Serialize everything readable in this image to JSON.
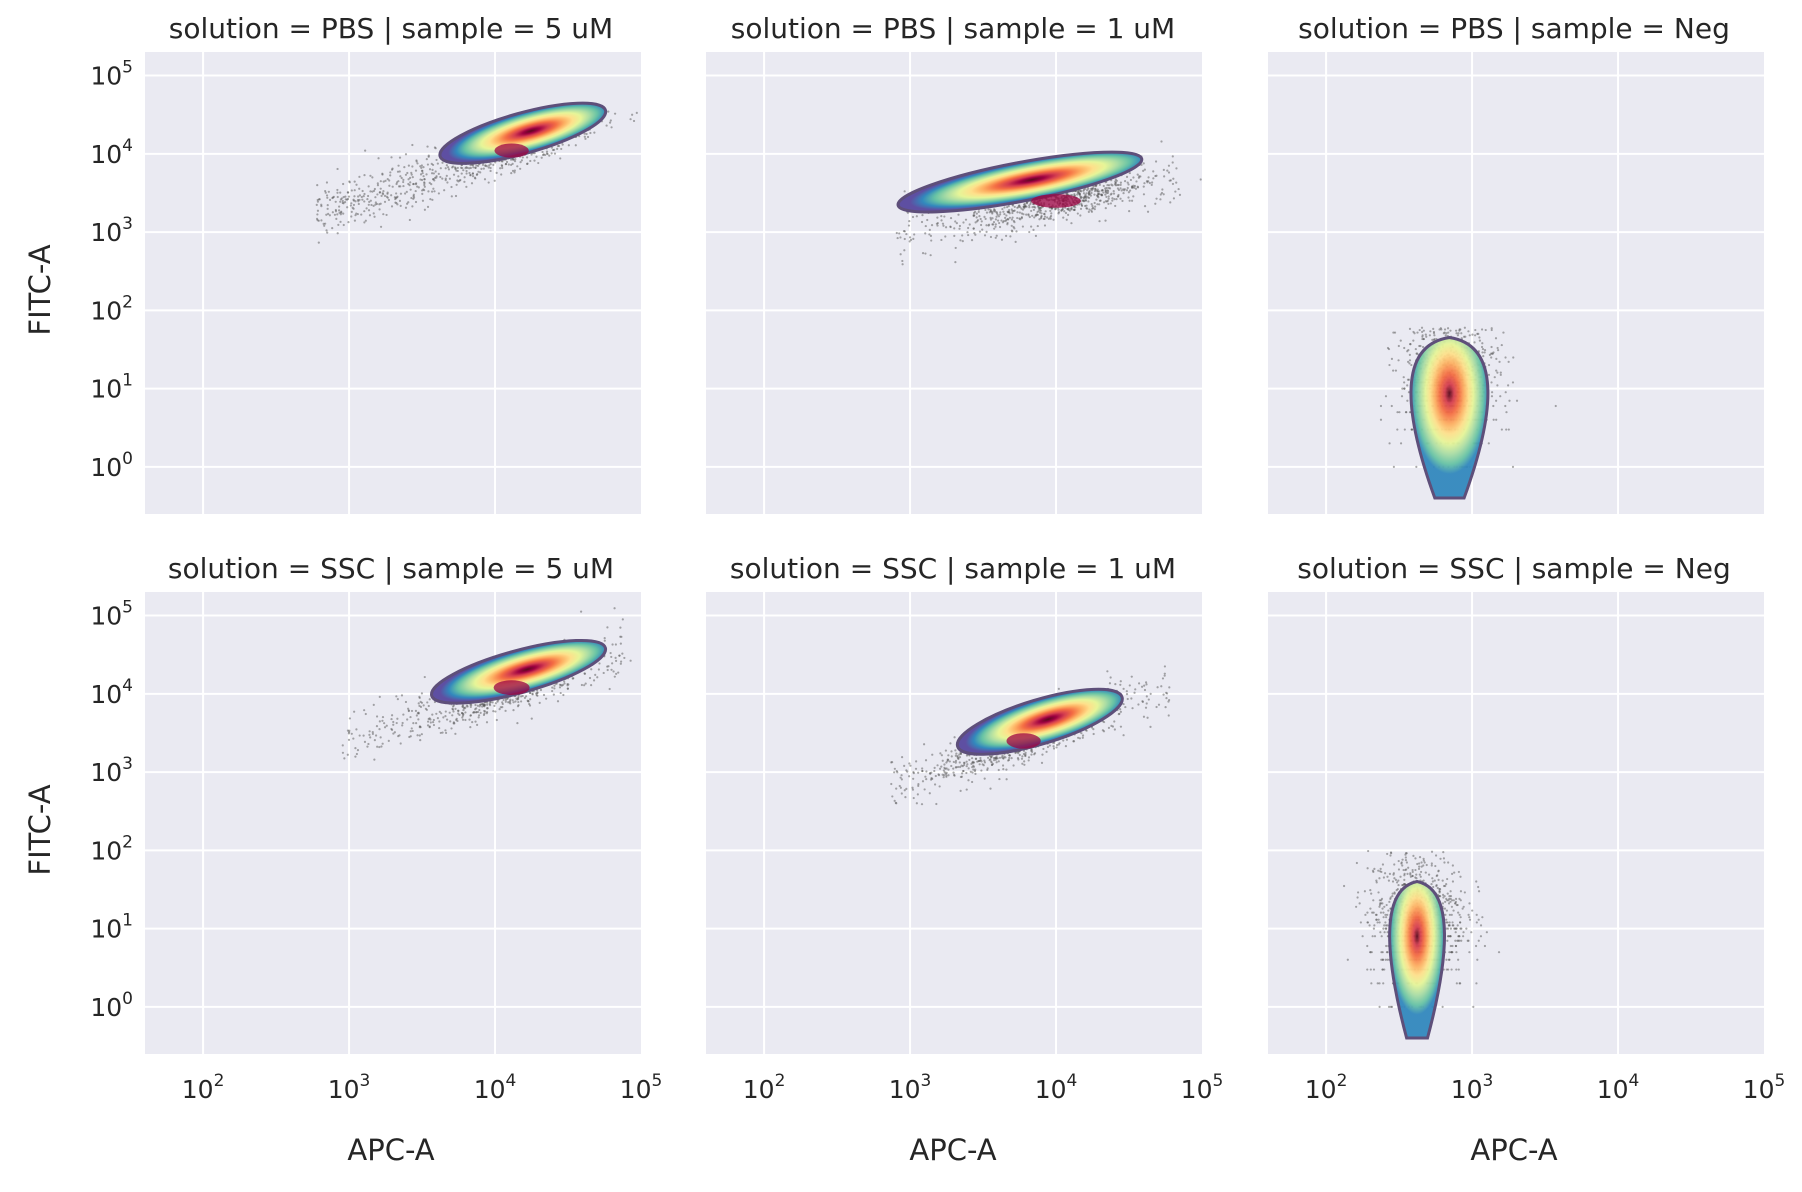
{
  "chart_data": {
    "type": "scatter",
    "layout": "facet-grid",
    "xlabel": "APC-A",
    "ylabel": "FITC-A",
    "xscale": "log",
    "yscale": "log",
    "xlim": [
      40,
      100000
    ],
    "ylim": [
      0.25,
      200000
    ],
    "x_ticks": [
      {
        "base": "10",
        "exp": "2"
      },
      {
        "base": "10",
        "exp": "3"
      },
      {
        "base": "10",
        "exp": "4"
      },
      {
        "base": "10",
        "exp": "5"
      }
    ],
    "y_ticks": [
      {
        "base": "10",
        "exp": "0"
      },
      {
        "base": "10",
        "exp": "1"
      },
      {
        "base": "10",
        "exp": "2"
      },
      {
        "base": "10",
        "exp": "3"
      },
      {
        "base": "10",
        "exp": "4"
      },
      {
        "base": "10",
        "exp": "5"
      }
    ],
    "grid": true,
    "style": "scatter with kernel density contours (spectral colormap)",
    "colors": {
      "panel_background": "#eaeaf2",
      "grid": "#ffffff",
      "outer_contour": "#5e4f7a",
      "scatter": "#555555",
      "density_colormap": [
        "#5e4fa2",
        "#3288bd",
        "#66c2a5",
        "#abdda4",
        "#e6f598",
        "#fee08b",
        "#fdae61",
        "#f46d43",
        "#d53e4f",
        "#9e0142",
        "#5a0a1c"
      ]
    },
    "facets": [
      {
        "title": "solution = PBS | sample = 5 uM",
        "row": 0,
        "col": 0,
        "population": {
          "x_center": 13000,
          "y_center": 11000,
          "x_range": [
            4000,
            60000
          ],
          "y_range": [
            6000,
            90000
          ]
        },
        "outliers": {
          "x_range": [
            600,
            4000
          ],
          "y_range": [
            7000,
            30000
          ]
        }
      },
      {
        "title": "solution = PBS | sample = 1 uM",
        "row": 0,
        "col": 1,
        "population": {
          "x_center": 10000,
          "y_center": 2500,
          "x_range": [
            800,
            40000
          ],
          "y_range": [
            1500,
            20000
          ]
        },
        "outliers": {
          "x_range": [
            800,
            70000
          ],
          "y_range": [
            1000,
            60000
          ]
        }
      },
      {
        "title": "solution = PBS | sample = Neg",
        "row": 0,
        "col": 2,
        "population": {
          "x_center": 700,
          "y_center": 15,
          "x_range": [
            300,
            1400
          ],
          "y_range": [
            0.4,
            45
          ]
        },
        "outliers": {
          "x_range": [
            150,
            2500
          ],
          "y_range": [
            0.4,
            60
          ]
        }
      },
      {
        "title": "solution = SSC | sample = 5 uM",
        "row": 1,
        "col": 0,
        "population": {
          "x_center": 13000,
          "y_center": 12000,
          "x_range": [
            3500,
            60000
          ],
          "y_range": [
            6000,
            100000
          ]
        },
        "outliers": {
          "x_range": [
            900,
            80000
          ],
          "y_range": [
            8000,
            120000
          ]
        }
      },
      {
        "title": "solution = SSC | sample = 1 uM",
        "row": 1,
        "col": 1,
        "population": {
          "x_center": 6000,
          "y_center": 2500,
          "x_range": [
            2000,
            30000
          ],
          "y_range": [
            1300,
            25000
          ]
        },
        "outliers": {
          "x_range": [
            700,
            60000
          ],
          "y_range": [
            1000,
            60000
          ]
        }
      },
      {
        "title": "solution = SSC | sample = Neg",
        "row": 1,
        "col": 2,
        "population": {
          "x_center": 420,
          "y_center": 14,
          "x_range": [
            250,
            750
          ],
          "y_range": [
            0.4,
            40
          ]
        },
        "outliers": {
          "x_range": [
            50,
            1000
          ],
          "y_range": [
            0.4,
            100
          ]
        }
      }
    ]
  }
}
